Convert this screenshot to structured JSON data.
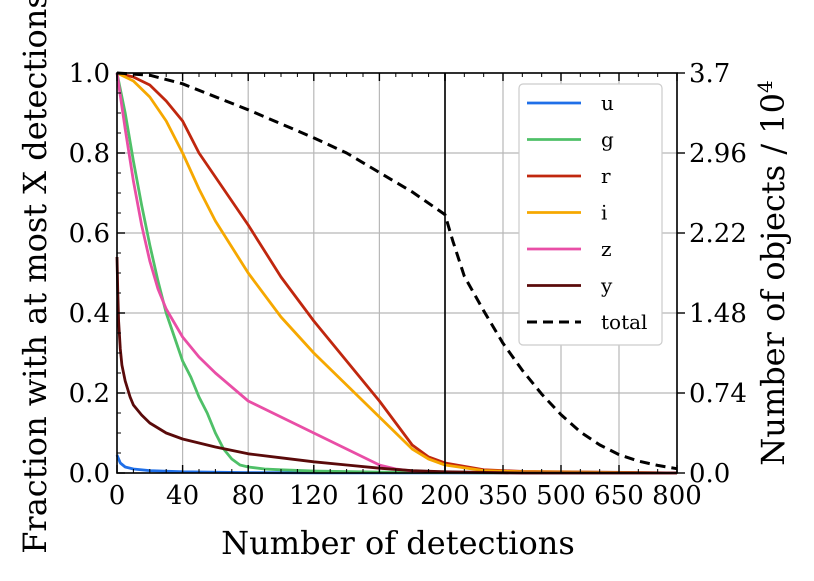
{
  "chart_data": {
    "type": "line",
    "xlabel": "Number of detections",
    "ylabel": "Fraction with at most X detections",
    "y2label": "Number of objects / 10^4",
    "ylim": [
      0,
      1
    ],
    "y2lim": [
      0,
      3.7
    ],
    "panels": [
      {
        "name": "left",
        "xlim": [
          0,
          200
        ],
        "xticks": [
          0,
          40,
          80,
          120,
          160,
          200
        ]
      },
      {
        "name": "right",
        "xlim": [
          200,
          800
        ],
        "xticks": [
          200,
          350,
          500,
          650,
          800
        ]
      }
    ],
    "yticks": [
      "0.0",
      "0.2",
      "0.4",
      "0.6",
      "0.8",
      "1.0"
    ],
    "y2ticks": [
      "0.0",
      "0.74",
      "1.48",
      "2.22",
      "2.96",
      "3.7"
    ],
    "legend_position": "top-right",
    "series": [
      {
        "name": "u",
        "color": "#1f6fe8",
        "dash": false,
        "x": [
          0,
          2,
          5,
          10,
          20,
          40,
          80,
          120,
          200,
          400,
          800
        ],
        "y": [
          0.045,
          0.025,
          0.015,
          0.01,
          0.006,
          0.003,
          0.001,
          0.0005,
          0.0002,
          0,
          0
        ]
      },
      {
        "name": "g",
        "color": "#4fc068",
        "dash": false,
        "x": [
          0,
          5,
          10,
          15,
          20,
          25,
          30,
          35,
          40,
          45,
          50,
          55,
          60,
          65,
          70,
          75,
          80,
          90,
          100,
          120,
          160,
          200,
          400,
          800
        ],
        "y": [
          1.0,
          0.9,
          0.78,
          0.67,
          0.57,
          0.48,
          0.4,
          0.34,
          0.28,
          0.24,
          0.19,
          0.15,
          0.1,
          0.06,
          0.035,
          0.02,
          0.015,
          0.01,
          0.008,
          0.005,
          0.002,
          0.001,
          0,
          0
        ]
      },
      {
        "name": "r",
        "color": "#c0270e",
        "dash": false,
        "x": [
          0,
          10,
          20,
          30,
          40,
          50,
          60,
          80,
          100,
          120,
          140,
          160,
          180,
          190,
          200,
          300,
          400,
          800
        ],
        "y": [
          1.0,
          0.99,
          0.97,
          0.93,
          0.88,
          0.8,
          0.74,
          0.62,
          0.49,
          0.38,
          0.28,
          0.18,
          0.07,
          0.04,
          0.025,
          0.008,
          0.004,
          0.0
        ]
      },
      {
        "name": "i",
        "color": "#f6a800",
        "dash": false,
        "x": [
          0,
          10,
          20,
          30,
          40,
          50,
          60,
          80,
          100,
          120,
          140,
          160,
          180,
          190,
          200,
          300,
          400,
          800
        ],
        "y": [
          1.0,
          0.98,
          0.94,
          0.88,
          0.8,
          0.71,
          0.63,
          0.5,
          0.39,
          0.3,
          0.22,
          0.14,
          0.06,
          0.035,
          0.02,
          0.006,
          0.003,
          0.0
        ]
      },
      {
        "name": "z",
        "color": "#e94ea6",
        "dash": false,
        "x": [
          0,
          5,
          10,
          15,
          20,
          25,
          30,
          40,
          50,
          60,
          80,
          100,
          120,
          140,
          160,
          170,
          180,
          200,
          400,
          800
        ],
        "y": [
          1.0,
          0.86,
          0.73,
          0.62,
          0.53,
          0.46,
          0.41,
          0.34,
          0.29,
          0.25,
          0.18,
          0.14,
          0.1,
          0.06,
          0.02,
          0.01,
          0.005,
          0.002,
          0.0,
          0.0
        ]
      },
      {
        "name": "y",
        "color": "#5a0a0a",
        "dash": false,
        "x": [
          0,
          0.5,
          1,
          2,
          3,
          5,
          8,
          10,
          15,
          20,
          30,
          40,
          60,
          80,
          100,
          120,
          140,
          160,
          180,
          200,
          400,
          800
        ],
        "y": [
          0.54,
          0.45,
          0.38,
          0.31,
          0.27,
          0.23,
          0.19,
          0.17,
          0.145,
          0.125,
          0.1,
          0.085,
          0.065,
          0.048,
          0.038,
          0.028,
          0.02,
          0.012,
          0.006,
          0.003,
          0.0,
          0.0
        ]
      },
      {
        "name": "total",
        "color": "#000000",
        "dash": true,
        "axis": "right",
        "x": [
          0,
          10,
          20,
          40,
          60,
          80,
          100,
          120,
          140,
          160,
          180,
          200,
          220,
          250,
          300,
          350,
          400,
          450,
          500,
          550,
          600,
          650,
          700,
          750,
          800
        ],
        "y": [
          3.7,
          3.69,
          3.68,
          3.6,
          3.48,
          3.36,
          3.23,
          3.1,
          2.96,
          2.78,
          2.6,
          2.39,
          2.15,
          1.82,
          1.5,
          1.2,
          0.95,
          0.73,
          0.54,
          0.38,
          0.26,
          0.17,
          0.11,
          0.07,
          0.04
        ]
      }
    ]
  }
}
